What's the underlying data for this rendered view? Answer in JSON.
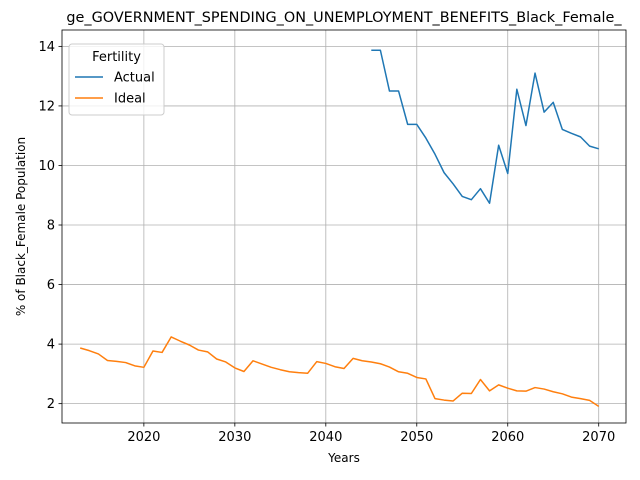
{
  "chart_data": {
    "type": "line",
    "title": "ge_GOVERNMENT_SPENDING_ON_UNEMPLOYMENT_BENEFITS_Black_Female_",
    "xlabel": "Years",
    "ylabel": "% of Black_Female Population",
    "xlim": [
      2011,
      2073
    ],
    "ylim": [
      1.35,
      14.55
    ],
    "xticks": [
      2020,
      2030,
      2040,
      2050,
      2060,
      2070
    ],
    "yticks": [
      2,
      4,
      6,
      8,
      10,
      12,
      14
    ],
    "grid": true,
    "legend": {
      "title": "Fertility",
      "placement": "upper-left"
    },
    "series": [
      {
        "name": "Actual",
        "color": "#1f77b4",
        "x": [
          2045,
          2046,
          2047,
          2048,
          2049,
          2050,
          2051,
          2052,
          2053,
          2054,
          2055,
          2056,
          2057,
          2058,
          2059,
          2060,
          2061,
          2062,
          2063,
          2064,
          2065,
          2066,
          2067,
          2068,
          2069,
          2070
        ],
        "y": [
          13.87,
          13.87,
          12.5,
          12.5,
          11.38,
          11.38,
          10.92,
          10.38,
          9.76,
          9.38,
          8.96,
          8.85,
          9.22,
          8.73,
          10.68,
          9.73,
          12.56,
          11.34,
          13.1,
          11.79,
          12.12,
          11.21,
          11.08,
          10.96,
          10.65,
          10.56
        ]
      },
      {
        "name": "Ideal",
        "color": "#ff7f0e",
        "x": [
          2013,
          2014,
          2015,
          2016,
          2017,
          2018,
          2019,
          2020,
          2021,
          2022,
          2023,
          2024,
          2025,
          2026,
          2027,
          2028,
          2029,
          2030,
          2031,
          2032,
          2033,
          2034,
          2035,
          2036,
          2037,
          2038,
          2039,
          2040,
          2041,
          2042,
          2043,
          2044,
          2045,
          2046,
          2047,
          2048,
          2049,
          2050,
          2051,
          2052,
          2053,
          2054,
          2055,
          2056,
          2057,
          2058,
          2059,
          2060,
          2061,
          2062,
          2063,
          2064,
          2065,
          2066,
          2067,
          2068,
          2069,
          2070
        ],
        "y": [
          3.87,
          3.78,
          3.67,
          3.45,
          3.42,
          3.38,
          3.27,
          3.22,
          3.77,
          3.72,
          4.24,
          4.1,
          3.97,
          3.8,
          3.74,
          3.5,
          3.4,
          3.2,
          3.08,
          3.44,
          3.33,
          3.22,
          3.14,
          3.07,
          3.04,
          3.02,
          3.41,
          3.35,
          3.24,
          3.18,
          3.52,
          3.44,
          3.4,
          3.34,
          3.23,
          3.07,
          3.02,
          2.88,
          2.83,
          2.17,
          2.12,
          2.09,
          2.35,
          2.34,
          2.81,
          2.43,
          2.63,
          2.52,
          2.43,
          2.42,
          2.54,
          2.49,
          2.4,
          2.33,
          2.22,
          2.17,
          2.11,
          1.91
        ]
      }
    ]
  }
}
